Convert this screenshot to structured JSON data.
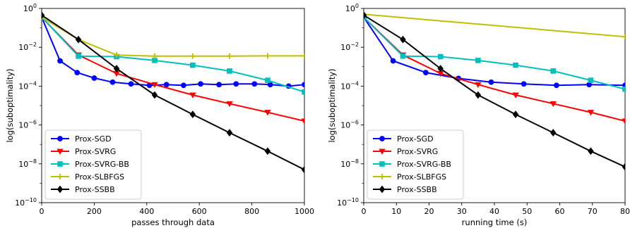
{
  "chart_data": [
    {
      "type": "line",
      "title": "",
      "xlabel": "passes through data",
      "ylabel": "log(suboptimality)",
      "xlim": [
        0,
        1000
      ],
      "ylim": [
        1e-10,
        1
      ],
      "yscale": "log",
      "xticks": [
        0,
        200,
        400,
        600,
        800,
        1000
      ],
      "yticks": [
        1e-10,
        1e-08,
        1e-06,
        0.0001,
        0.01,
        1
      ],
      "ytick_labels": [
        {
          "base": "10",
          "exp": "−10"
        },
        {
          "base": "10",
          "exp": "−8"
        },
        {
          "base": "10",
          "exp": "−6"
        },
        {
          "base": "10",
          "exp": "−4"
        },
        {
          "base": "10",
          "exp": "−2"
        },
        {
          "base": "10",
          "exp": "0"
        }
      ],
      "grid": false,
      "legend_position": "lower-left",
      "series": [
        {
          "name": "Prox-SGD",
          "color": "#0000ff",
          "marker": "circle",
          "x": [
            0,
            70,
            135,
            200,
            270,
            340,
            410,
            475,
            540,
            605,
            675,
            740,
            810,
            870,
            940,
            1000
          ],
          "y": [
            0.35,
            0.002,
            0.0005,
            0.00026,
            0.00016,
            0.00013,
            0.00011,
            0.00012,
            0.00011,
            0.00013,
            0.00012,
            0.00013,
            0.00013,
            0.00012,
            0.0001,
            0.00012
          ]
        },
        {
          "name": "Prox-SVRG",
          "color": "#ff0000",
          "marker": "triangle-down",
          "x": [
            0,
            140,
            285,
            430,
            575,
            715,
            860,
            1000
          ],
          "y": [
            0.35,
            0.004,
            0.00045,
            0.00012,
            3.5e-05,
            1.25e-05,
            4.5e-06,
            1.6e-06
          ]
        },
        {
          "name": "Prox-SVRG-BB",
          "color": "#00bfbf",
          "marker": "square",
          "x": [
            0,
            140,
            285,
            430,
            575,
            715,
            860,
            1000
          ],
          "y": [
            0.35,
            0.0035,
            0.0033,
            0.0021,
            0.0012,
            0.0006,
            0.0002,
            5e-05
          ]
        },
        {
          "name": "Prox-SLBFGS",
          "color": "#bfbf00",
          "marker": "plus",
          "x": [
            0,
            140,
            285,
            430,
            575,
            715,
            860,
            1000
          ],
          "y": [
            0.35,
            0.025,
            0.004,
            0.0035,
            0.0035,
            0.0035,
            0.0036,
            0.0036
          ]
        },
        {
          "name": "Prox-SSBB",
          "color": "#000000",
          "marker": "diamond",
          "x": [
            0,
            140,
            285,
            430,
            575,
            715,
            860,
            1000
          ],
          "y": [
            0.45,
            0.025,
            0.0008,
            3.5e-05,
            3.5e-06,
            4e-07,
            4.5e-08,
            5e-09
          ]
        }
      ]
    },
    {
      "type": "line",
      "title": "",
      "xlabel": "running time (s)",
      "ylabel": "log(suboptimality)",
      "xlim": [
        0,
        80
      ],
      "ylim": [
        1e-10,
        1
      ],
      "yscale": "log",
      "xticks": [
        0,
        10,
        20,
        30,
        40,
        50,
        60,
        70,
        80
      ],
      "yticks": [
        1e-10,
        1e-08,
        1e-06,
        0.0001,
        0.01,
        1
      ],
      "ytick_labels": [
        {
          "base": "10",
          "exp": "−10"
        },
        {
          "base": "10",
          "exp": "−8"
        },
        {
          "base": "10",
          "exp": "−6"
        },
        {
          "base": "10",
          "exp": "−4"
        },
        {
          "base": "10",
          "exp": "−2"
        },
        {
          "base": "10",
          "exp": "0"
        }
      ],
      "grid": false,
      "legend_position": "lower-left",
      "series": [
        {
          "name": "Prox-SGD",
          "color": "#0000ff",
          "marker": "circle",
          "x": [
            0,
            9,
            19,
            29,
            39,
            49,
            59,
            69,
            80
          ],
          "y": [
            0.35,
            0.002,
            0.0005,
            0.00025,
            0.00016,
            0.00013,
            0.00011,
            0.00012,
            0.00011
          ]
        },
        {
          "name": "Prox-SVRG",
          "color": "#ff0000",
          "marker": "triangle-down",
          "x": [
            0,
            12,
            23.5,
            35,
            46.5,
            58,
            69.5,
            80
          ],
          "y": [
            0.35,
            0.004,
            0.00045,
            0.00012,
            3.5e-05,
            1.25e-05,
            4.5e-06,
            1.6e-06
          ]
        },
        {
          "name": "Prox-SVRG-BB",
          "color": "#00bfbf",
          "marker": "square",
          "x": [
            0,
            12,
            23.5,
            35,
            46.5,
            58,
            69.5,
            80
          ],
          "y": [
            0.35,
            0.0035,
            0.0033,
            0.0021,
            0.0012,
            0.0006,
            0.0002,
            7e-05
          ]
        },
        {
          "name": "Prox-SLBFGS",
          "color": "#bfbf00",
          "marker": "plus",
          "x": [
            0,
            80
          ],
          "y": [
            0.5,
            0.035
          ]
        },
        {
          "name": "Prox-SSBB",
          "color": "#000000",
          "marker": "diamond",
          "x": [
            0,
            12,
            23.5,
            35,
            46.5,
            58,
            69.5,
            80
          ],
          "y": [
            0.45,
            0.025,
            0.0008,
            3.5e-05,
            3.5e-06,
            4e-07,
            4.5e-08,
            7e-09
          ]
        }
      ]
    }
  ]
}
